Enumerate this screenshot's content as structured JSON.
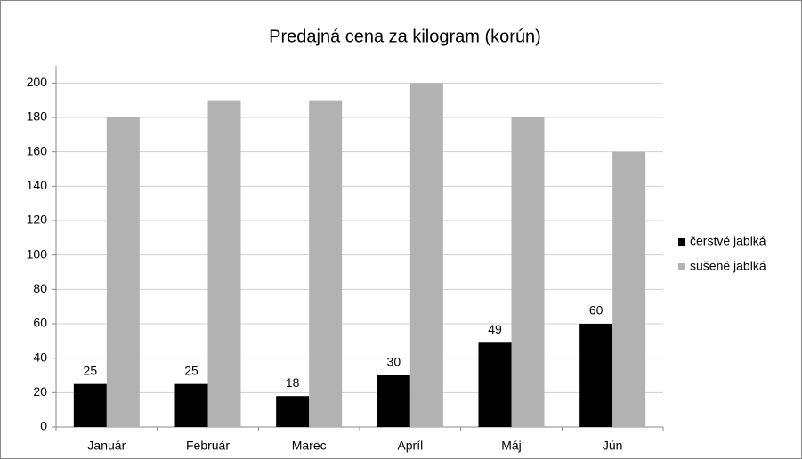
{
  "chart_data": {
    "type": "bar",
    "title": "Predajná cena za kilogram (korún)",
    "categories": [
      "Január",
      "Február",
      "Marec",
      "Apríl",
      "Máj",
      "Jún"
    ],
    "series": [
      {
        "name": "čerstvé jablká",
        "color": "#000000",
        "values": [
          25,
          25,
          18,
          30,
          49,
          60
        ]
      },
      {
        "name": "sušené jablká",
        "color": "#b2b2b2",
        "values": [
          180,
          190,
          190,
          200,
          180,
          160
        ]
      }
    ],
    "ylim": [
      0,
      210
    ],
    "yticks": [
      0,
      20,
      40,
      60,
      80,
      100,
      120,
      140,
      160,
      180,
      200
    ],
    "grid": true,
    "legend": "right"
  }
}
